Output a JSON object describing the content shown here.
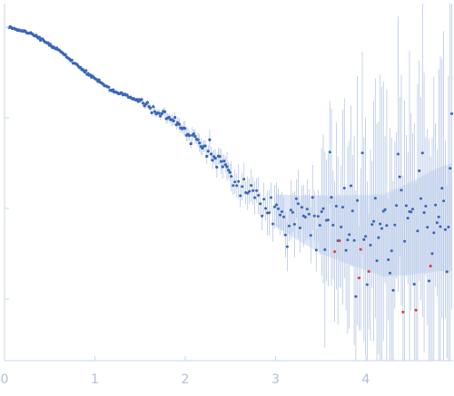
{
  "chart_data": {
    "type": "scatter",
    "title": "",
    "xlabel": "",
    "ylabel": "",
    "x_ticks": [
      "0",
      "1",
      "2",
      "3",
      "4"
    ],
    "xlim": [
      0,
      4.95
    ],
    "y_scale": "log",
    "y_tick_labels_visible": false,
    "grid": false,
    "legend": "none",
    "colors": {
      "point": "#3a66b8",
      "outlier_point": "#e03a3a",
      "error_bar": "#b7c8e6",
      "error_band": "#dbe4f5",
      "axis": "#c9d6ee",
      "tick_text": "#b3bfd6"
    },
    "series": [
      {
        "marker": "dot",
        "error_bars": true,
        "trend": {
          "x": [
            0.05,
            0.3,
            0.6,
            0.9,
            1.2,
            1.5,
            1.8,
            2.1,
            2.4,
            2.7,
            3.0,
            3.3,
            3.6,
            3.9,
            4.2,
            4.5,
            4.8,
            4.95
          ],
          "y": [
            0,
            -0.07,
            -0.25,
            -0.5,
            -0.7,
            -0.82,
            -0.98,
            -1.22,
            -1.5,
            -1.8,
            -2.02,
            -2.12,
            -2.2,
            -2.25,
            -2.3,
            -2.22,
            -2.12,
            -2.1
          ]
        },
        "red_points_from_x": 3.5
      }
    ]
  }
}
